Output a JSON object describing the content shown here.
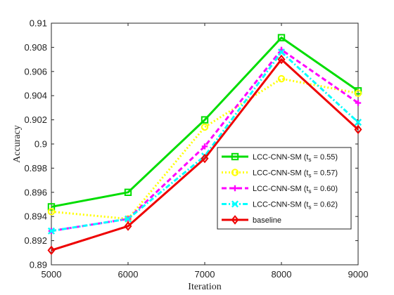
{
  "chart_data": {
    "type": "line",
    "xlabel": "Iteration",
    "ylabel": "Accuracy",
    "x": [
      5000,
      6000,
      7000,
      8000,
      9000
    ],
    "xlim": [
      5000,
      9000
    ],
    "ylim": [
      0.89,
      0.91
    ],
    "x_ticks": [
      "5000",
      "6000",
      "7000",
      "8000",
      "9000"
    ],
    "y_ticks": [
      "0.89",
      "0.892",
      "0.894",
      "0.896",
      "0.898",
      "0.9",
      "0.902",
      "0.904",
      "0.906",
      "0.908",
      "0.91"
    ],
    "grid": false,
    "legend_position": "lower-right",
    "series": [
      {
        "name": "LCC-CNN-SM (t_s = 0.55)",
        "legend_prefix": "LCC-CNN-SM (t",
        "legend_sub": "s",
        "legend_suffix": " = 0.55)",
        "values": [
          0.8948,
          0.896,
          0.902,
          0.9088,
          0.9044
        ],
        "color": "#00dd00",
        "dash": "solid",
        "marker": "square"
      },
      {
        "name": "LCC-CNN-SM (t_s = 0.57)",
        "legend_prefix": "LCC-CNN-SM (t",
        "legend_sub": "s",
        "legend_suffix": " = 0.57)",
        "values": [
          0.8944,
          0.8938,
          0.9014,
          0.9054,
          0.9042
        ],
        "color": "#ffff00",
        "dash": "dotted",
        "marker": "circle"
      },
      {
        "name": "LCC-CNN-SM (t_s = 0.60)",
        "legend_prefix": "LCC-CNN-SM (t",
        "legend_sub": "s",
        "legend_suffix": " = 0.60)",
        "values": [
          0.8928,
          0.8938,
          0.8998,
          0.9078,
          0.9034
        ],
        "color": "#ff00ff",
        "dash": "dashed",
        "marker": "plus"
      },
      {
        "name": "LCC-CNN-SM (t_s = 0.62)",
        "legend_prefix": "LCC-CNN-SM (t",
        "legend_sub": "s",
        "legend_suffix": " = 0.62)",
        "values": [
          0.8928,
          0.8938,
          0.899,
          0.9076,
          0.9018
        ],
        "color": "#00ffff",
        "dash": "dashdot",
        "marker": "cross"
      },
      {
        "name": "baseline",
        "legend_prefix": "baseline",
        "legend_sub": "",
        "legend_suffix": "",
        "values": [
          0.8912,
          0.8932,
          0.8988,
          0.907,
          0.9012
        ],
        "color": "#ee0000",
        "dash": "solid",
        "marker": "diamond"
      }
    ]
  }
}
